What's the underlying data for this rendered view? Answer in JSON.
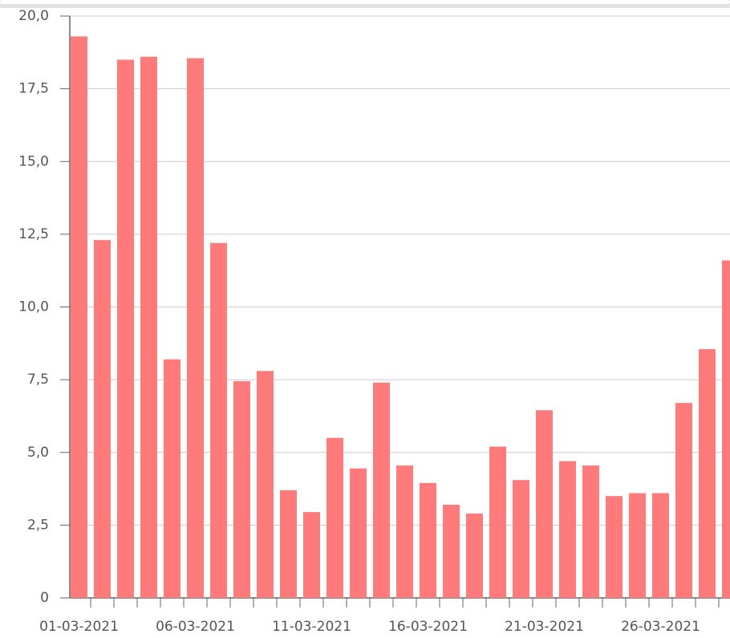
{
  "chart_data": {
    "type": "bar",
    "categories": [
      "01-03-2021",
      null,
      null,
      null,
      null,
      "06-03-2021",
      null,
      null,
      null,
      null,
      "11-03-2021",
      null,
      null,
      null,
      null,
      "16-03-2021",
      null,
      null,
      null,
      null,
      "21-03-2021",
      null,
      null,
      null,
      null,
      "26-03-2021",
      null,
      null,
      null
    ],
    "values": [
      19.3,
      12.3,
      18.5,
      18.6,
      8.2,
      18.55,
      12.2,
      7.45,
      7.8,
      3.7,
      2.95,
      5.5,
      4.45,
      7.4,
      4.55,
      3.95,
      3.2,
      2.9,
      5.2,
      4.05,
      6.45,
      4.7,
      4.55,
      3.5,
      3.6,
      3.6,
      6.7,
      8.55,
      11.6
    ],
    "color": "#ff7b7b",
    "ylim": [
      0,
      20
    ],
    "yticks": [
      0,
      {
        "value": 2.5,
        "label": "2,5"
      },
      {
        "value": 5,
        "label": "5,0"
      },
      {
        "value": 7.5,
        "label": "7,5"
      },
      {
        "value": 10,
        "label": "10,0"
      },
      {
        "value": 12.5,
        "label": "12,5"
      },
      {
        "value": 15,
        "label": "15,0"
      },
      {
        "value": 17.5,
        "label": "17,5"
      },
      {
        "value": 20,
        "label": "20,0"
      }
    ],
    "grid": true
  }
}
